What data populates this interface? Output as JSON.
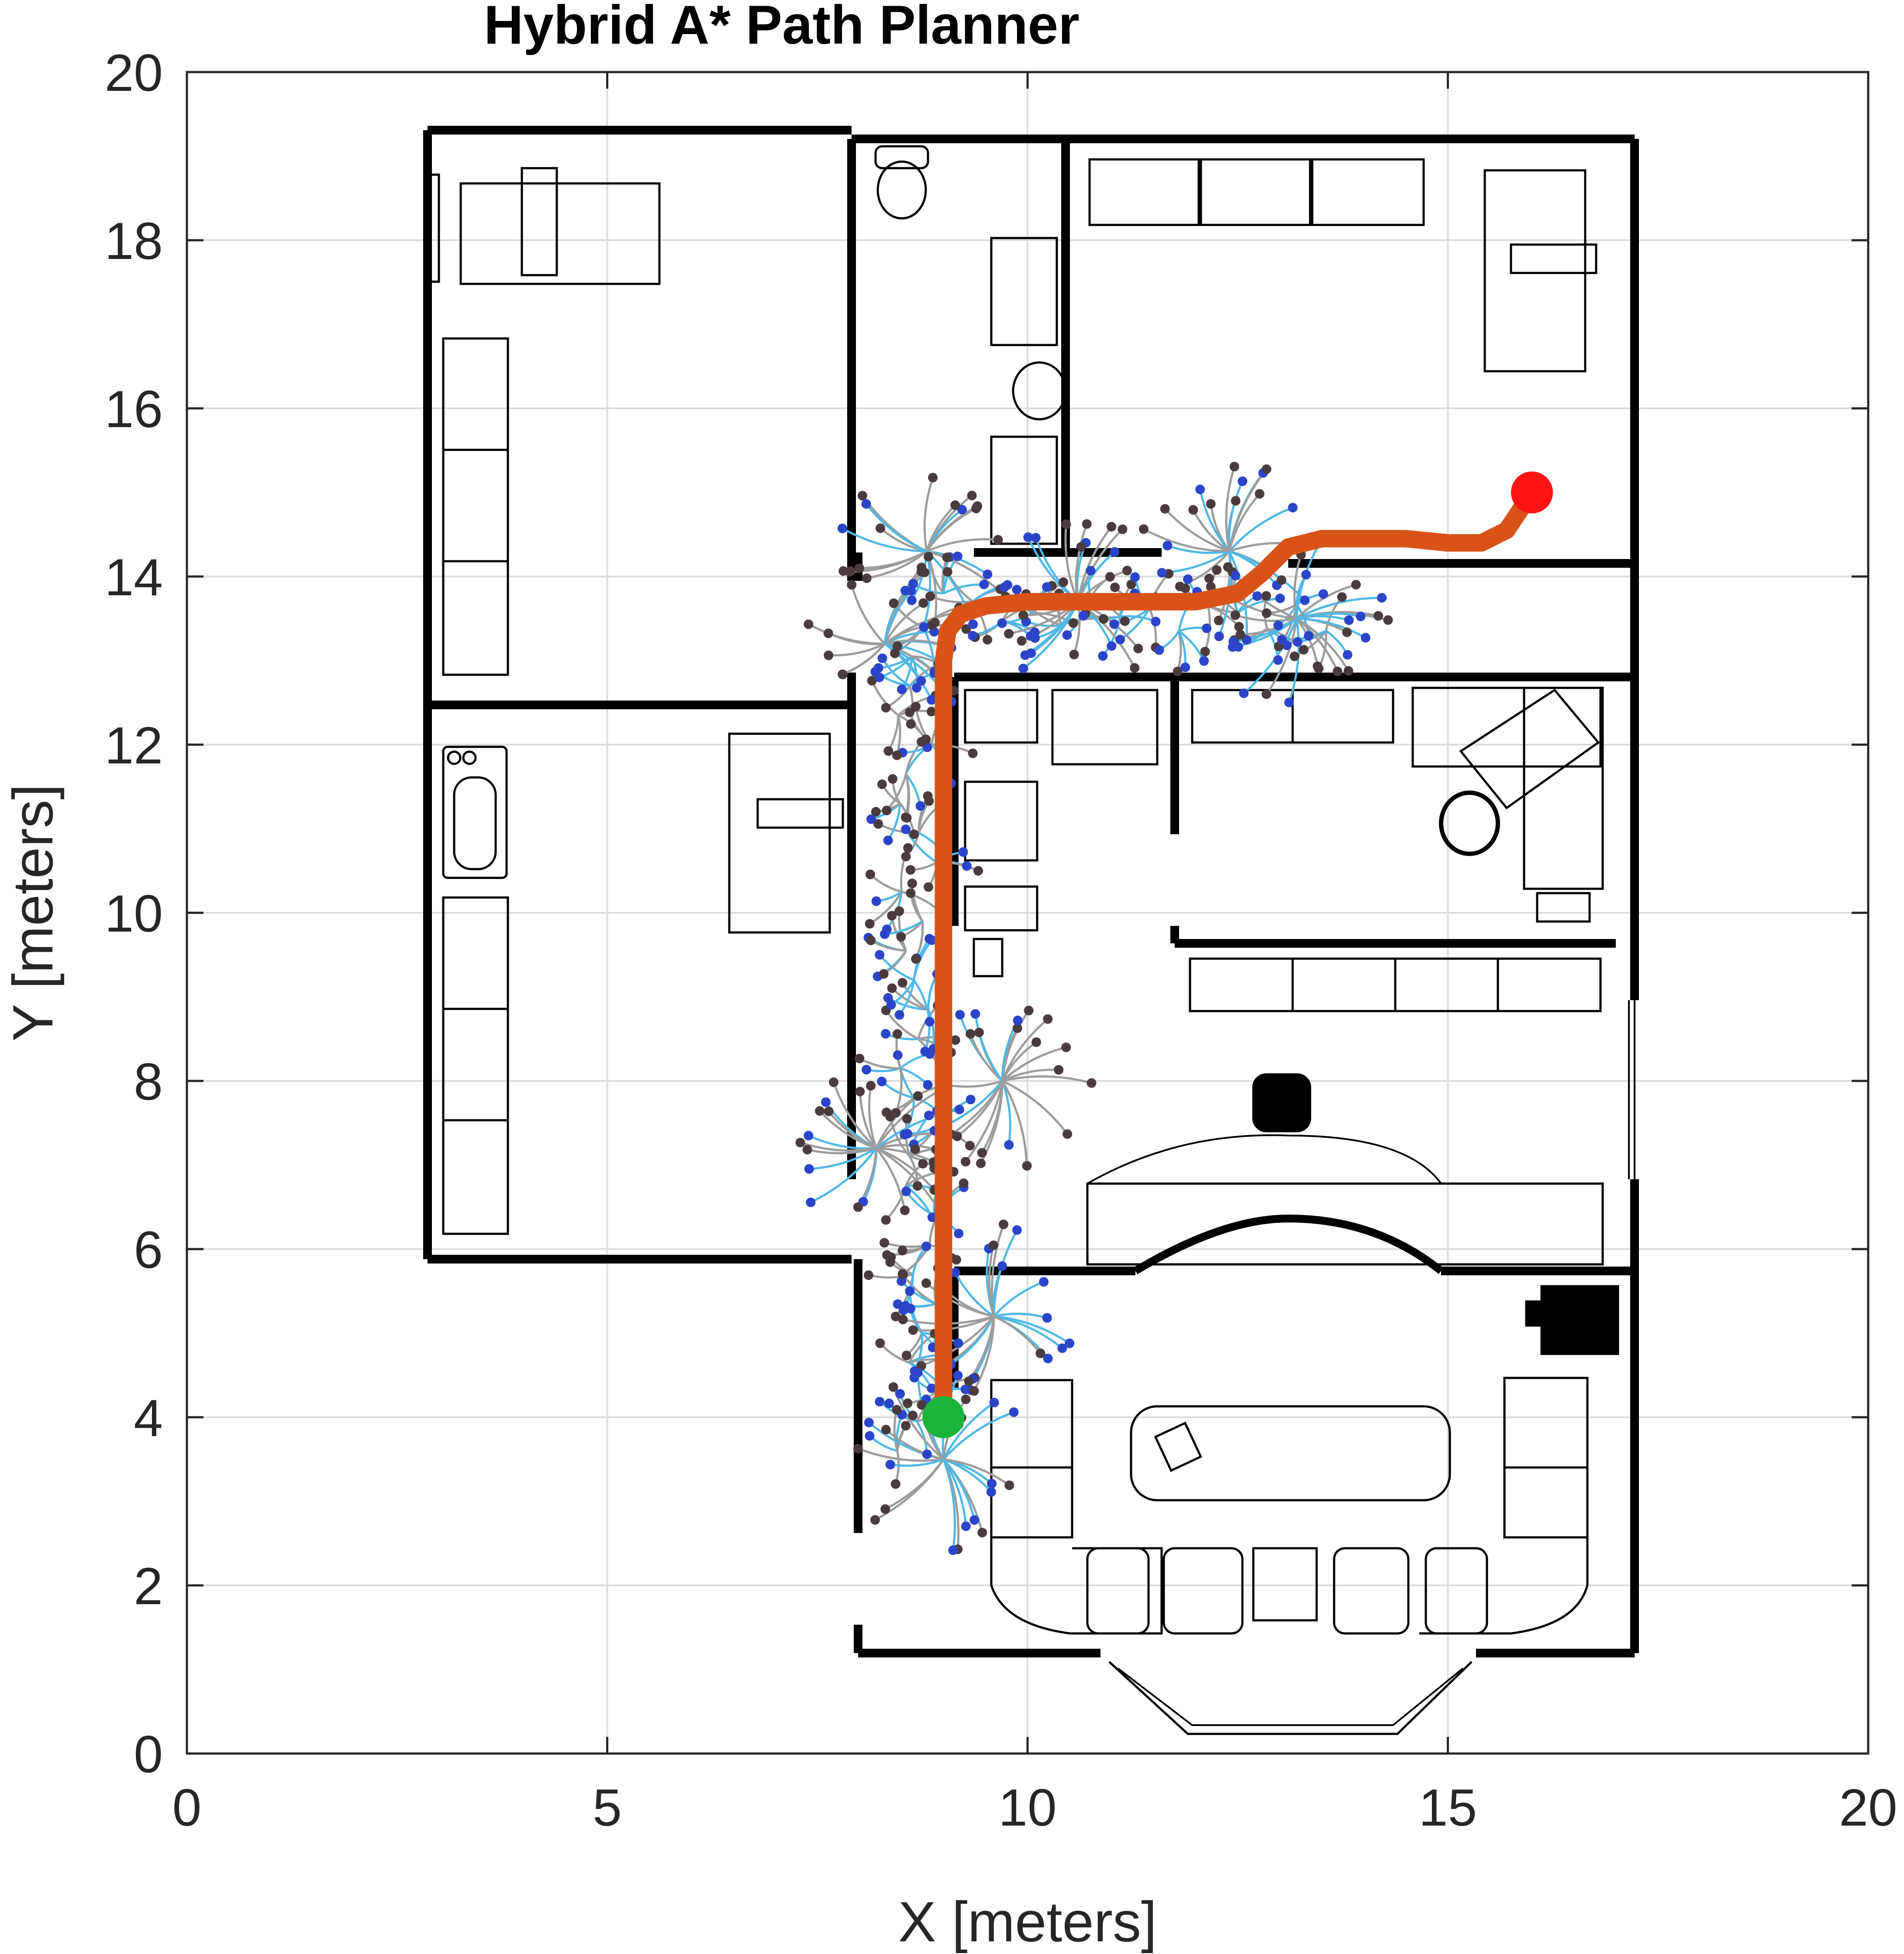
{
  "chart_data": {
    "type": "scatter",
    "title": "Hybrid A* Path Planner",
    "xlabel": "X [meters]",
    "ylabel": "Y [meters]",
    "xlim": [
      0,
      20
    ],
    "ylim": [
      0,
      20
    ],
    "xticks": [
      0,
      5,
      10,
      15,
      20
    ],
    "yticks": [
      0,
      2,
      4,
      6,
      8,
      10,
      12,
      14,
      16,
      18,
      20
    ],
    "grid": true,
    "start": {
      "x": 9.0,
      "y": 4.0
    },
    "goal": {
      "x": 16.0,
      "y": 15.0
    },
    "path": {
      "x": [
        9.0,
        9.0,
        9.0,
        9.0,
        9.0,
        9.0,
        9.05,
        9.2,
        9.5,
        10.0,
        11.0,
        12.0,
        12.5,
        12.8,
        13.1,
        13.5,
        14.0,
        14.5,
        15.0,
        15.4,
        15.7,
        16.0
      ],
      "y": [
        4.0,
        6.0,
        8.0,
        10.0,
        12.0,
        13.0,
        13.35,
        13.55,
        13.65,
        13.7,
        13.7,
        13.7,
        13.8,
        14.05,
        14.35,
        14.45,
        14.45,
        14.45,
        14.4,
        14.4,
        14.55,
        15.0
      ]
    },
    "colors": {
      "path": "#d95319",
      "start": "#19b43a",
      "goal": "#ff1414",
      "explored_edge": "#9c9c9c",
      "expansion_edge": "#4fb8e6",
      "expanded_node": "#4a3c3c",
      "frontier_node": "#2b44c8",
      "walls": "#000000",
      "grid": "#dcdcdc"
    },
    "search_tree_clusters": [
      {
        "x": 8.3,
        "y": 13.2
      },
      {
        "x": 8.8,
        "y": 14.3
      },
      {
        "x": 10.6,
        "y": 13.7
      },
      {
        "x": 12.4,
        "y": 14.3
      },
      {
        "x": 13.2,
        "y": 13.5
      },
      {
        "x": 8.2,
        "y": 7.2
      },
      {
        "x": 9.7,
        "y": 8.0
      },
      {
        "x": 9.6,
        "y": 5.2
      },
      {
        "x": 9.0,
        "y": 3.5
      }
    ]
  }
}
